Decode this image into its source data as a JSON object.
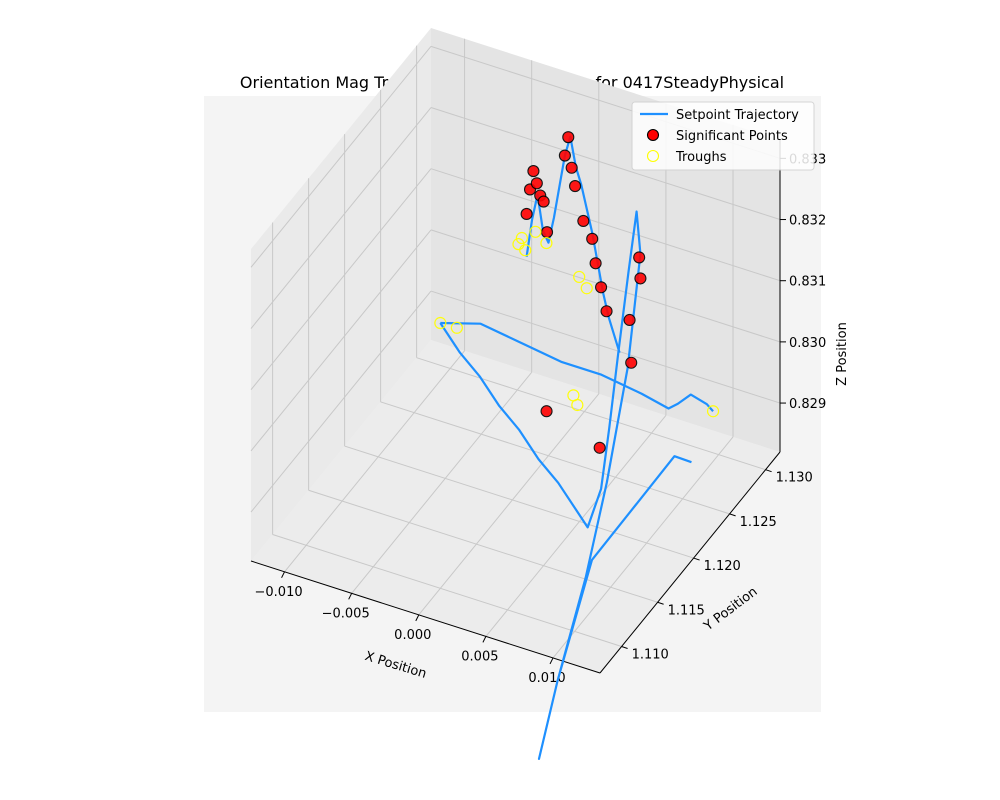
{
  "chart_data": {
    "type": "scatter",
    "projection": "3d",
    "title": "Orientation Mag Trajectory Feature Tracking for 0417SteadyPhysical",
    "xlabel": "X Position",
    "ylabel": "Y Position",
    "zlabel": "Z Position",
    "xlim": [
      -0.0125,
      0.0135
    ],
    "ylim": [
      1.107,
      1.132
    ],
    "zlim": [
      0.8282,
      0.8333
    ],
    "x_ticks": [
      -0.01,
      -0.005,
      0.0,
      0.005,
      0.01
    ],
    "x_tick_labels": [
      "−0.010",
      "−0.005",
      "0.000",
      "0.005",
      "0.010"
    ],
    "y_ticks": [
      1.11,
      1.115,
      1.12,
      1.125,
      1.13
    ],
    "y_tick_labels": [
      "1.110",
      "1.115",
      "1.120",
      "1.125",
      "1.130"
    ],
    "z_ticks": [
      0.829,
      0.83,
      0.831,
      0.832,
      0.833
    ],
    "z_tick_labels": [
      "0.829",
      "0.830",
      "0.831",
      "0.832",
      "0.833"
    ],
    "grid": true,
    "legend_position": "top-right",
    "legend": [
      {
        "label": "Setpoint Trajectory",
        "kind": "line",
        "color": "#1e90ff"
      },
      {
        "label": "Significant Points",
        "kind": "marker",
        "color": "#ff0000",
        "edge": "#000000"
      },
      {
        "label": "Troughs",
        "kind": "marker",
        "color": "none",
        "edge": "#ffff00"
      }
    ],
    "series": [
      {
        "name": "Setpoint Trajectory",
        "kind": "line",
        "color": "#1e90ff",
        "points": [
          [
            -0.011,
            1.1305,
            0.8288
          ],
          [
            -0.009,
            1.1295,
            0.8286
          ],
          [
            -0.007,
            1.1285,
            0.8285
          ],
          [
            -0.005,
            1.1275,
            0.8283
          ],
          [
            -0.003,
            1.1265,
            0.8282
          ],
          [
            -0.001,
            1.1255,
            0.828
          ],
          [
            0.001,
            1.1245,
            0.8279
          ],
          [
            0.003,
            1.1235,
            0.8277
          ],
          [
            0.004,
            1.123,
            0.8276
          ],
          [
            0.005,
            1.123,
            0.8283
          ],
          [
            0.0055,
            1.1232,
            0.8293
          ],
          [
            0.006,
            1.1235,
            0.8305
          ],
          [
            0.0065,
            1.124,
            0.8318
          ],
          [
            0.007,
            1.1242,
            0.8328
          ],
          [
            0.0075,
            1.1238,
            0.8322
          ],
          [
            0.0072,
            1.1226,
            0.8305
          ],
          [
            0.0065,
            1.121,
            0.8288
          ],
          [
            0.006,
            1.119,
            0.8275
          ],
          [
            0.0055,
            1.116,
            0.8262
          ],
          [
            0.0052,
            1.114,
            0.8252
          ],
          [
            0.0055,
            1.116,
            0.8262
          ],
          [
            0.007,
            1.118,
            0.828
          ],
          [
            0.009,
            1.12,
            0.8287
          ],
          [
            0.011,
            1.122,
            0.8294
          ],
          [
            0.012,
            1.1225,
            0.8293
          ]
        ]
      },
      {
        "name": "Setpoint Trajectory",
        "kind": "line",
        "color": "#1e90ff",
        "points": [
          [
            -0.011,
            1.1305,
            0.8288
          ],
          [
            -0.008,
            1.1305,
            0.829
          ],
          [
            -0.005,
            1.1305,
            0.8289
          ],
          [
            -0.002,
            1.1305,
            0.8288
          ],
          [
            0.001,
            1.1305,
            0.8288
          ],
          [
            0.004,
            1.1305,
            0.8287
          ],
          [
            0.006,
            1.1305,
            0.8286
          ],
          [
            0.0075,
            1.129,
            0.829
          ],
          [
            0.009,
            1.128,
            0.8294
          ],
          [
            0.011,
            1.1265,
            0.8296
          ],
          [
            0.012,
            1.1255,
            0.8297
          ]
        ]
      },
      {
        "name": "Setpoint Trajectory",
        "kind": "line",
        "color": "#1e90ff",
        "points": [
          [
            -0.0035,
            1.1285,
            0.8307
          ],
          [
            -0.0032,
            1.1287,
            0.8313
          ],
          [
            -0.0029,
            1.1289,
            0.8317
          ],
          [
            -0.0026,
            1.1291,
            0.8311
          ],
          [
            -0.0023,
            1.1293,
            0.8309
          ],
          [
            -0.002,
            1.1295,
            0.8313
          ],
          [
            -0.0017,
            1.1297,
            0.8318
          ],
          [
            -0.0014,
            1.1299,
            0.8323
          ],
          [
            -0.0011,
            1.1301,
            0.8326
          ],
          [
            -0.0008,
            1.1303,
            0.8321
          ],
          [
            -0.0005,
            1.1305,
            0.8318
          ],
          [
            -0.0002,
            1.1307,
            0.8314
          ],
          [
            0.0001,
            1.1309,
            0.831
          ],
          [
            0.0004,
            1.1311,
            0.8305
          ],
          [
            0.0007,
            1.1313,
            0.83
          ],
          [
            0.001,
            1.1315,
            0.8296
          ],
          [
            0.0013,
            1.1317,
            0.8293
          ],
          [
            0.0016,
            1.1319,
            0.829
          ]
        ]
      },
      {
        "name": "Significant Points",
        "kind": "scatter",
        "color": "#ff0000",
        "edge": "#000000",
        "points": [
          [
            -0.0035,
            1.1285,
            0.8314
          ],
          [
            -0.0033,
            1.1286,
            0.8318
          ],
          [
            -0.0031,
            1.1287,
            0.8321
          ],
          [
            -0.0029,
            1.1288,
            0.8319
          ],
          [
            -0.0027,
            1.1289,
            0.8317
          ],
          [
            -0.0025,
            1.129,
            0.8316
          ],
          [
            -0.0023,
            1.1291,
            0.8311
          ],
          [
            -0.0014,
            1.1299,
            0.8323
          ],
          [
            -0.0012,
            1.13,
            0.8326
          ],
          [
            -0.001,
            1.1301,
            0.8321
          ],
          [
            -0.0008,
            1.1302,
            0.8318
          ],
          [
            -0.0004,
            1.1306,
            0.8312
          ],
          [
            0.0001,
            1.1309,
            0.8309
          ],
          [
            0.0003,
            1.131,
            0.8305
          ],
          [
            0.0006,
            1.1312,
            0.8301
          ],
          [
            0.0009,
            1.1314,
            0.8297
          ],
          [
            0.0004,
            1.124,
            0.8291
          ],
          [
            0.005,
            1.1228,
            0.829
          ],
          [
            0.0073,
            1.124,
            0.8321
          ],
          [
            0.0075,
            1.1238,
            0.8318
          ],
          [
            0.0068,
            1.1236,
            0.8311
          ],
          [
            0.0066,
            1.1242,
            0.8303
          ]
        ]
      },
      {
        "name": "Troughs",
        "kind": "scatter",
        "color": "none",
        "edge": "#ffff00",
        "points": [
          [
            -0.011,
            1.1305,
            0.8288
          ],
          [
            -0.0095,
            1.13,
            0.8289
          ],
          [
            -0.004,
            1.1283,
            0.8309
          ],
          [
            -0.0038,
            1.1284,
            0.831
          ],
          [
            -0.0036,
            1.1285,
            0.8308
          ],
          [
            -0.003,
            1.1288,
            0.8311
          ],
          [
            -0.0024,
            1.1292,
            0.8309
          ],
          [
            -0.0006,
            1.1304,
            0.8303
          ],
          [
            -0.0002,
            1.1307,
            0.8301
          ],
          [
            0.0024,
            1.124,
            0.8295
          ],
          [
            0.0028,
            1.1238,
            0.8294
          ],
          [
            0.012,
            1.1255,
            0.8297
          ]
        ]
      }
    ]
  }
}
